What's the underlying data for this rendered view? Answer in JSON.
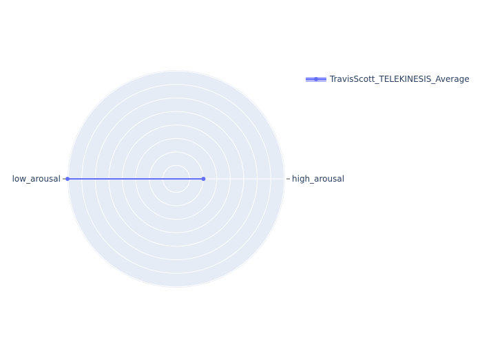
{
  "chart_data": {
    "type": "radar",
    "categories": [
      "high_arousal",
      "low_arousal"
    ],
    "series": [
      {
        "name": "TravisScott_TELEKINESIS_Average",
        "values": [
          0.25,
          1.0
        ],
        "color": "#636efa"
      }
    ],
    "radial_range": [
      0,
      1
    ],
    "grid": true,
    "legend_position": "top-right",
    "background_color": "#e5ecf6",
    "grid_color": "#ffffff",
    "text_color": "#2a3f5f"
  }
}
